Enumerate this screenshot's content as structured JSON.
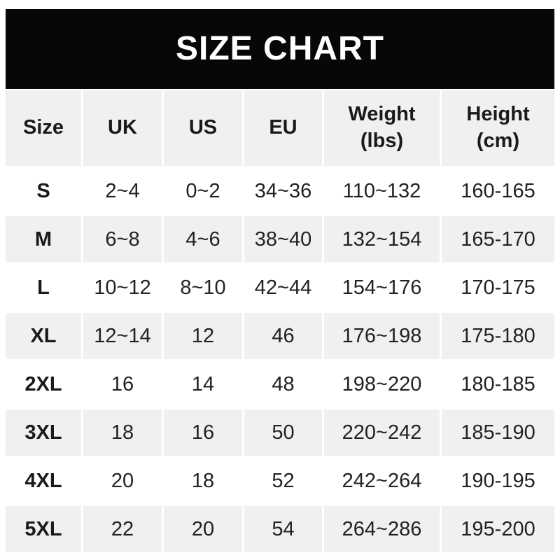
{
  "title_bar": {
    "title": "SIZE CHART"
  },
  "table": {
    "header_display": [
      "Size",
      "UK",
      "US",
      "EU",
      "Weight\n(lbs)",
      "Height\n(cm)"
    ]
  },
  "chart_data": {
    "type": "table",
    "title": "SIZE CHART",
    "columns": [
      "Size",
      "UK",
      "US",
      "EU",
      "Weight (lbs)",
      "Height (cm)"
    ],
    "rows": [
      [
        "S",
        "2~4",
        "0~2",
        "34~36",
        "110~132",
        "160-165"
      ],
      [
        "M",
        "6~8",
        "4~6",
        "38~40",
        "132~154",
        "165-170"
      ],
      [
        "L",
        "10~12",
        "8~10",
        "42~44",
        "154~176",
        "170-175"
      ],
      [
        "XL",
        "12~14",
        "12",
        "46",
        "176~198",
        "175-180"
      ],
      [
        "2XL",
        "16",
        "14",
        "48",
        "198~220",
        "180-185"
      ],
      [
        "3XL",
        "18",
        "16",
        "50",
        "220~242",
        "185-190"
      ],
      [
        "4XL",
        "20",
        "18",
        "52",
        "242~264",
        "190-195"
      ],
      [
        "5XL",
        "22",
        "20",
        "54",
        "264~286",
        "195-200"
      ]
    ]
  },
  "colors": {
    "title_bar_bg": "#070707",
    "title_text": "#ffffff",
    "shaded_cell_bg": "#f0f0f0",
    "plain_cell_bg": "#ffffff",
    "text": "#222222"
  }
}
